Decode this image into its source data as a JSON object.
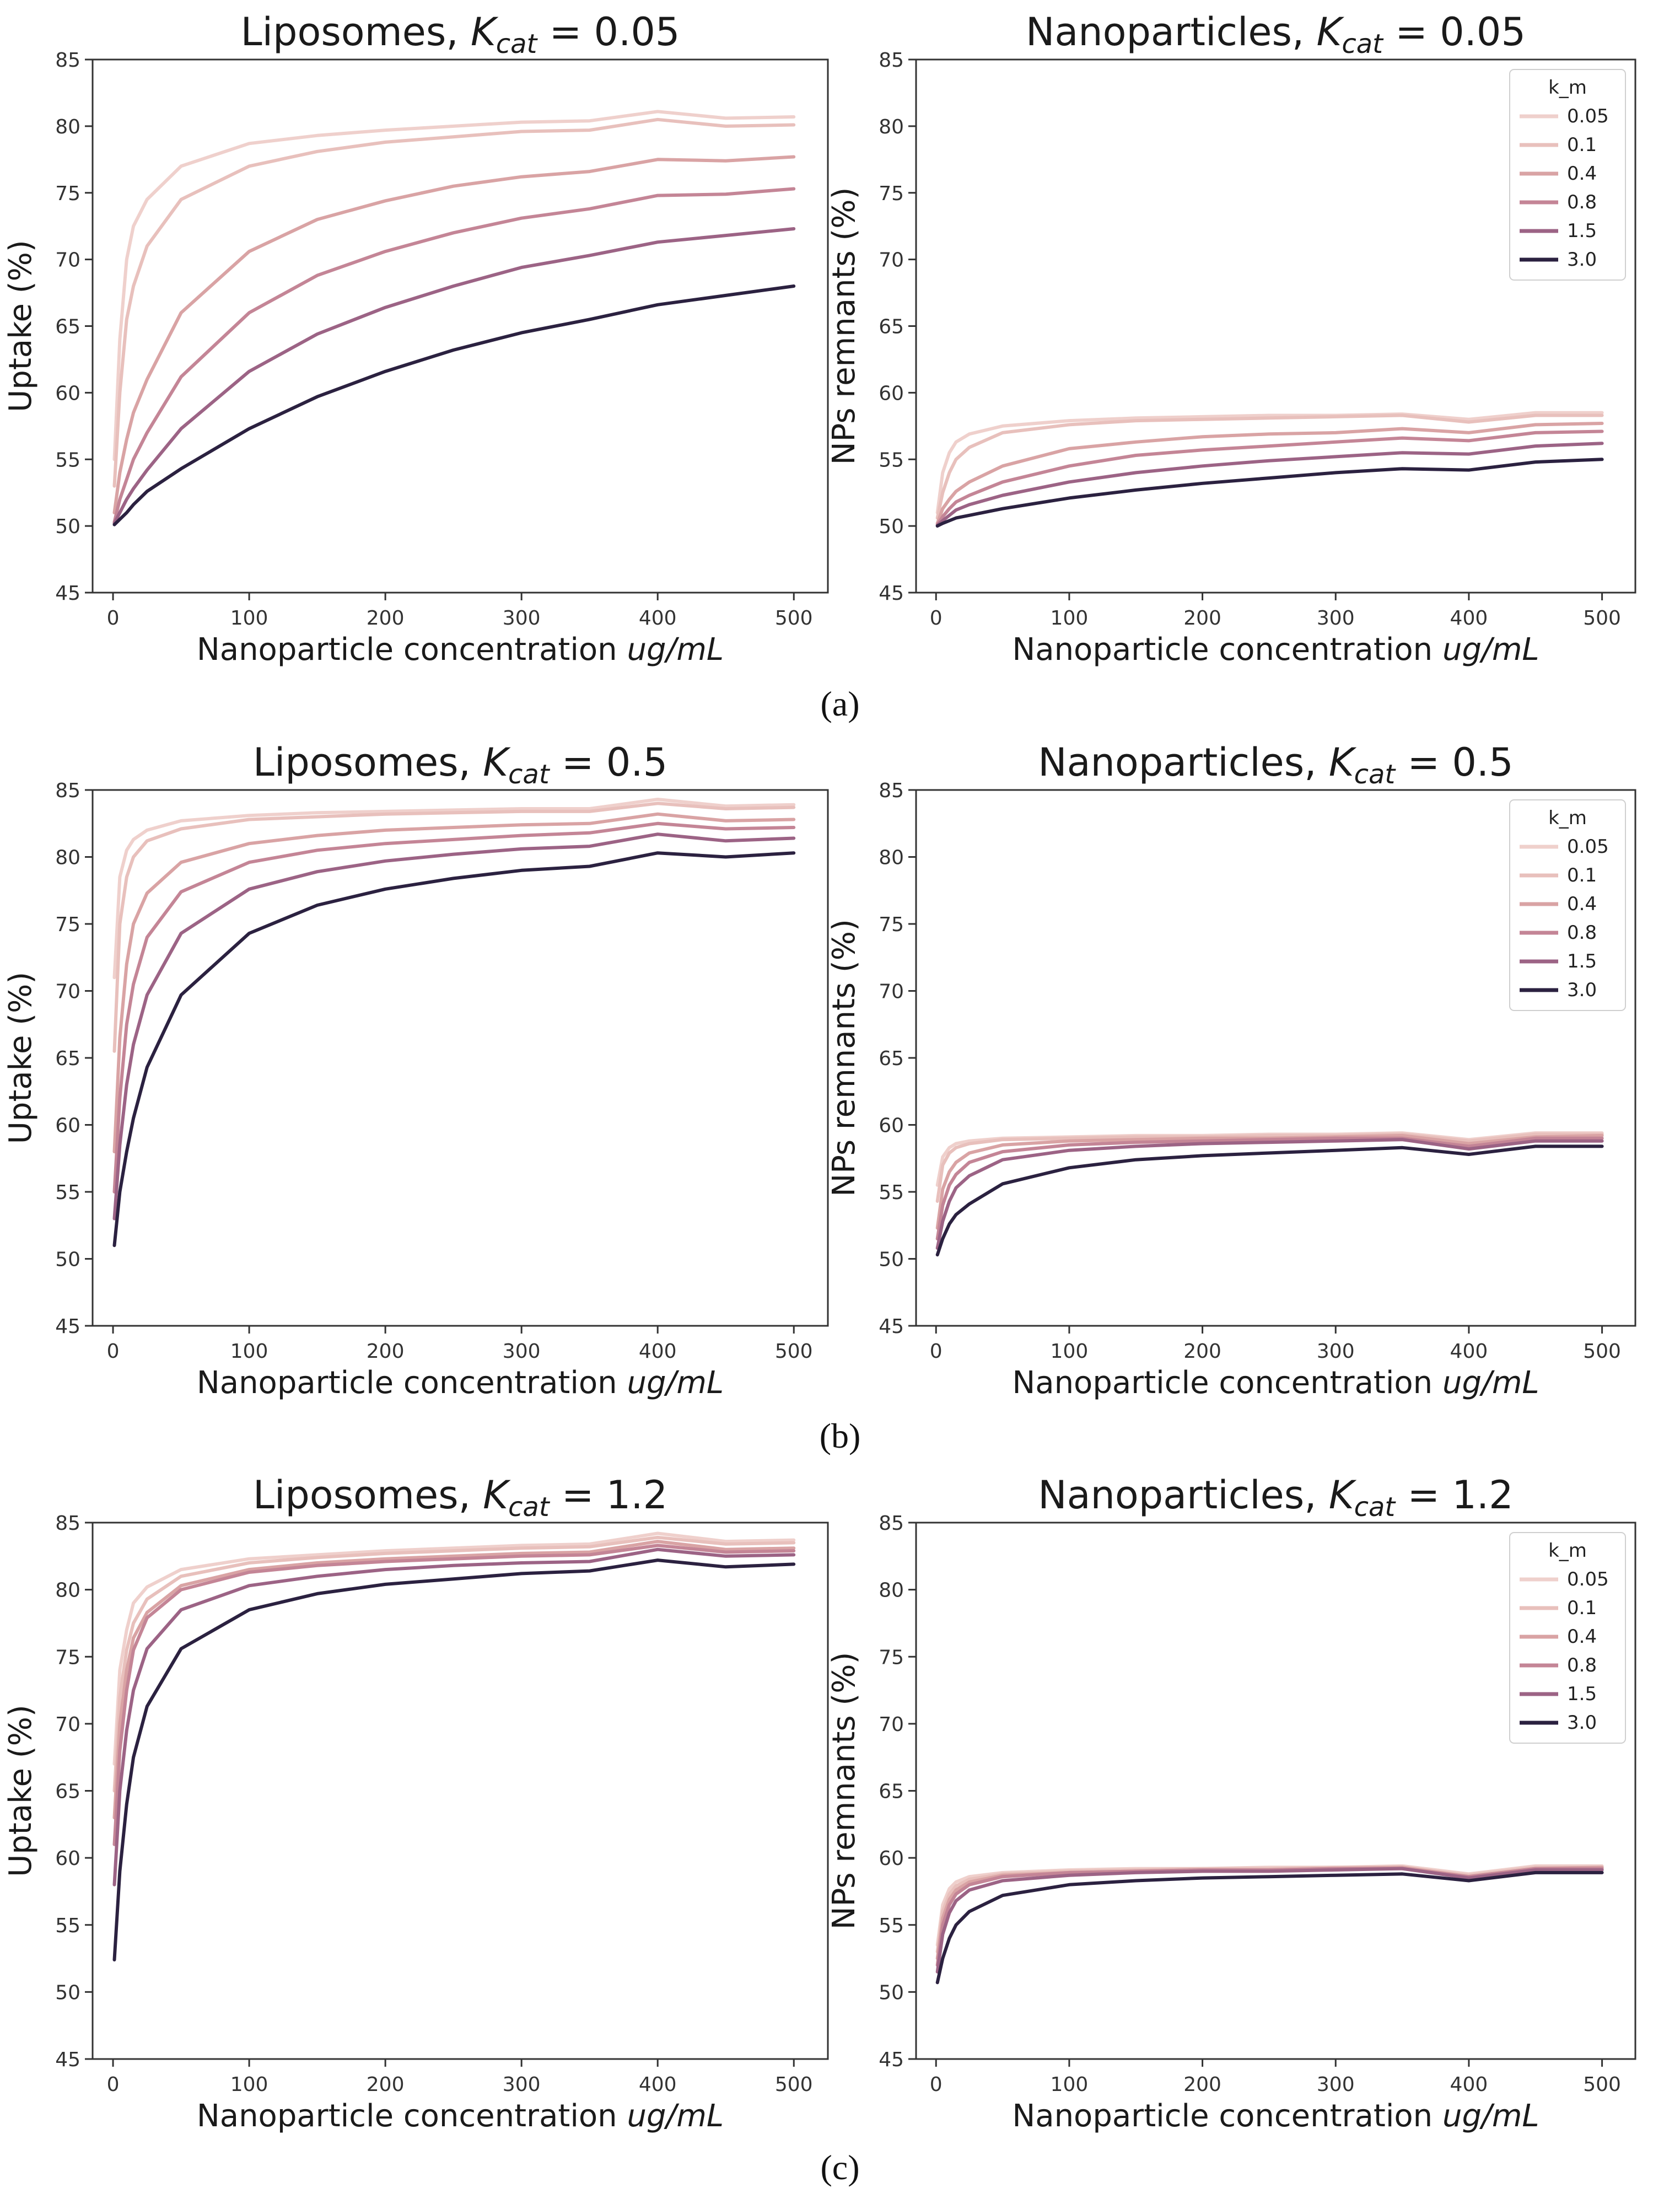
{
  "figure": {
    "captions": [
      "(a)",
      "(b)",
      "(c)"
    ],
    "x_unit_italic": "ug/mL"
  },
  "legend": {
    "title": "k_m",
    "entries": [
      "0.05",
      "0.1",
      "0.4",
      "0.8",
      "1.5",
      "3.0"
    ]
  },
  "series_colors": [
    "#efd0cc",
    "#e8c0bc",
    "#d9a3a4",
    "#c48596",
    "#9c6385",
    "#2b2140"
  ],
  "chart_data": [
    {
      "type": "line",
      "panel": "(a)",
      "title_main": "Liposomes, ",
      "title_symbol": "K",
      "title_sub": "cat",
      "title_value": "= 0.05",
      "xlabel": "Nanoparticle concentration ",
      "ylabel": "Uptake (%)",
      "xlim": [
        -15,
        525
      ],
      "ylim": [
        45,
        85
      ],
      "xticks": [
        0,
        100,
        200,
        300,
        400,
        500
      ],
      "yticks": [
        45,
        50,
        55,
        60,
        65,
        70,
        75,
        80,
        85
      ],
      "x": [
        1,
        5,
        10,
        15,
        25,
        50,
        100,
        150,
        200,
        250,
        300,
        350,
        400,
        450,
        500
      ],
      "legend": false,
      "series": [
        {
          "name": "0.05",
          "values": [
            55.0,
            64.0,
            70.0,
            72.5,
            74.5,
            77.0,
            78.7,
            79.3,
            79.7,
            80.0,
            80.3,
            80.4,
            81.1,
            80.6,
            80.7
          ]
        },
        {
          "name": "0.1",
          "values": [
            53.0,
            60.0,
            65.5,
            68.0,
            71.0,
            74.5,
            77.0,
            78.1,
            78.8,
            79.2,
            79.6,
            79.7,
            80.5,
            80.0,
            80.1
          ]
        },
        {
          "name": "0.4",
          "values": [
            51.0,
            54.0,
            56.5,
            58.5,
            61.0,
            66.0,
            70.6,
            73.0,
            74.4,
            75.5,
            76.2,
            76.6,
            77.5,
            77.4,
            77.7
          ]
        },
        {
          "name": "0.8",
          "values": [
            50.3,
            52.0,
            53.5,
            55.0,
            57.0,
            61.2,
            66.0,
            68.8,
            70.6,
            72.0,
            73.1,
            73.8,
            74.8,
            74.9,
            75.3
          ]
        },
        {
          "name": "1.5",
          "values": [
            50.2,
            51.0,
            52.0,
            52.8,
            54.2,
            57.3,
            61.6,
            64.4,
            66.4,
            68.0,
            69.4,
            70.3,
            71.3,
            71.8,
            72.3
          ]
        },
        {
          "name": "3.0",
          "values": [
            50.1,
            50.5,
            51.0,
            51.6,
            52.6,
            54.3,
            57.3,
            59.7,
            61.6,
            63.2,
            64.5,
            65.5,
            66.6,
            67.3,
            68.0
          ]
        }
      ]
    },
    {
      "type": "line",
      "panel": "(a)",
      "title_main": "Nanoparticles, ",
      "title_symbol": "K",
      "title_sub": "cat",
      "title_value": "= 0.05",
      "xlabel": "Nanoparticle concentration ",
      "ylabel": "NPs remnants (%)",
      "xlim": [
        -15,
        525
      ],
      "ylim": [
        45,
        85
      ],
      "xticks": [
        0,
        100,
        200,
        300,
        400,
        500
      ],
      "yticks": [
        45,
        50,
        55,
        60,
        65,
        70,
        75,
        80,
        85
      ],
      "x": [
        1,
        5,
        10,
        15,
        25,
        50,
        100,
        150,
        200,
        250,
        300,
        350,
        400,
        450,
        500
      ],
      "legend": true,
      "series": [
        {
          "name": "0.05",
          "values": [
            51.0,
            54.0,
            55.5,
            56.3,
            56.9,
            57.5,
            57.9,
            58.1,
            58.2,
            58.3,
            58.3,
            58.4,
            58.0,
            58.5,
            58.5
          ]
        },
        {
          "name": "0.1",
          "values": [
            50.6,
            52.5,
            54.0,
            55.0,
            55.9,
            57.0,
            57.6,
            57.9,
            58.0,
            58.1,
            58.2,
            58.3,
            57.8,
            58.3,
            58.3
          ]
        },
        {
          "name": "0.4",
          "values": [
            50.2,
            51.3,
            52.0,
            52.6,
            53.3,
            54.5,
            55.8,
            56.3,
            56.7,
            56.9,
            57.0,
            57.3,
            57.0,
            57.6,
            57.7
          ]
        },
        {
          "name": "0.8",
          "values": [
            50.1,
            50.7,
            51.3,
            51.8,
            52.3,
            53.3,
            54.5,
            55.3,
            55.7,
            56.0,
            56.3,
            56.6,
            56.4,
            57.0,
            57.1
          ]
        },
        {
          "name": "1.5",
          "values": [
            50.05,
            50.4,
            50.8,
            51.2,
            51.6,
            52.3,
            53.3,
            54.0,
            54.5,
            54.9,
            55.2,
            55.5,
            55.4,
            56.0,
            56.2
          ]
        },
        {
          "name": "3.0",
          "values": [
            50.0,
            50.2,
            50.4,
            50.6,
            50.8,
            51.3,
            52.1,
            52.7,
            53.2,
            53.6,
            54.0,
            54.3,
            54.2,
            54.8,
            55.0
          ]
        }
      ]
    },
    {
      "type": "line",
      "panel": "(b)",
      "title_main": "Liposomes, ",
      "title_symbol": "K",
      "title_sub": "cat",
      "title_value": "= 0.5",
      "xlabel": "Nanoparticle concentration ",
      "ylabel": "Uptake (%)",
      "xlim": [
        -15,
        525
      ],
      "ylim": [
        45,
        85
      ],
      "xticks": [
        0,
        100,
        200,
        300,
        400,
        500
      ],
      "yticks": [
        45,
        50,
        55,
        60,
        65,
        70,
        75,
        80,
        85
      ],
      "x": [
        1,
        5,
        10,
        15,
        25,
        50,
        100,
        150,
        200,
        250,
        300,
        350,
        400,
        450,
        500
      ],
      "legend": false,
      "series": [
        {
          "name": "0.05",
          "values": [
            71.0,
            78.5,
            80.5,
            81.3,
            82.0,
            82.7,
            83.1,
            83.3,
            83.4,
            83.5,
            83.6,
            83.6,
            84.3,
            83.8,
            83.9
          ]
        },
        {
          "name": "0.1",
          "values": [
            65.5,
            75.0,
            78.5,
            80.0,
            81.2,
            82.1,
            82.8,
            83.0,
            83.2,
            83.3,
            83.4,
            83.4,
            84.0,
            83.6,
            83.7
          ]
        },
        {
          "name": "0.4",
          "values": [
            58.0,
            66.5,
            72.0,
            75.0,
            77.3,
            79.6,
            81.0,
            81.6,
            82.0,
            82.2,
            82.4,
            82.5,
            83.2,
            82.7,
            82.8
          ]
        },
        {
          "name": "0.8",
          "values": [
            55.0,
            62.0,
            67.5,
            70.5,
            74.0,
            77.4,
            79.6,
            80.5,
            81.0,
            81.3,
            81.6,
            81.8,
            82.5,
            82.1,
            82.2
          ]
        },
        {
          "name": "1.5",
          "values": [
            53.0,
            58.5,
            63.0,
            66.0,
            69.7,
            74.3,
            77.6,
            78.9,
            79.7,
            80.2,
            80.6,
            80.8,
            81.7,
            81.2,
            81.4
          ]
        },
        {
          "name": "3.0",
          "values": [
            51.0,
            55.0,
            58.0,
            60.5,
            64.3,
            69.7,
            74.3,
            76.4,
            77.6,
            78.4,
            79.0,
            79.3,
            80.3,
            80.0,
            80.3
          ]
        }
      ]
    },
    {
      "type": "line",
      "panel": "(b)",
      "title_main": "Nanoparticles, ",
      "title_symbol": "K",
      "title_sub": "cat",
      "title_value": "= 0.5",
      "xlabel": "Nanoparticle concentration ",
      "ylabel": "NPs remnants (%)",
      "xlim": [
        -15,
        525
      ],
      "ylim": [
        45,
        85
      ],
      "xticks": [
        0,
        100,
        200,
        300,
        400,
        500
      ],
      "yticks": [
        45,
        50,
        55,
        60,
        65,
        70,
        75,
        80,
        85
      ],
      "x": [
        1,
        5,
        10,
        15,
        25,
        50,
        100,
        150,
        200,
        250,
        300,
        350,
        400,
        450,
        500
      ],
      "legend": true,
      "series": [
        {
          "name": "0.05",
          "values": [
            55.5,
            57.6,
            58.3,
            58.6,
            58.8,
            59.0,
            59.1,
            59.2,
            59.2,
            59.3,
            59.3,
            59.4,
            58.9,
            59.4,
            59.4
          ]
        },
        {
          "name": "0.1",
          "values": [
            54.3,
            57.0,
            57.9,
            58.3,
            58.6,
            58.9,
            59.0,
            59.1,
            59.1,
            59.2,
            59.2,
            59.3,
            58.8,
            59.3,
            59.3
          ]
        },
        {
          "name": "0.4",
          "values": [
            52.3,
            55.2,
            56.5,
            57.2,
            57.9,
            58.5,
            58.8,
            58.9,
            59.0,
            59.0,
            59.1,
            59.2,
            58.6,
            59.1,
            59.2
          ]
        },
        {
          "name": "0.8",
          "values": [
            51.5,
            54.0,
            55.5,
            56.3,
            57.2,
            58.0,
            58.5,
            58.7,
            58.8,
            58.9,
            59.0,
            59.0,
            58.4,
            59.0,
            59.0
          ]
        },
        {
          "name": "1.5",
          "values": [
            50.8,
            52.8,
            54.3,
            55.3,
            56.2,
            57.4,
            58.1,
            58.4,
            58.6,
            58.7,
            58.8,
            58.9,
            58.2,
            58.8,
            58.8
          ]
        },
        {
          "name": "3.0",
          "values": [
            50.3,
            51.5,
            52.6,
            53.3,
            54.1,
            55.6,
            56.8,
            57.4,
            57.7,
            57.9,
            58.1,
            58.3,
            57.8,
            58.4,
            58.4
          ]
        }
      ]
    },
    {
      "type": "line",
      "panel": "(c)",
      "title_main": "Liposomes, ",
      "title_symbol": "K",
      "title_sub": "cat",
      "title_value": "= 1.2",
      "xlabel": "Nanoparticle concentration ",
      "ylabel": "Uptake (%)",
      "xlim": [
        -15,
        525
      ],
      "ylim": [
        45,
        85
      ],
      "xticks": [
        0,
        100,
        200,
        300,
        400,
        500
      ],
      "yticks": [
        45,
        50,
        55,
        60,
        65,
        70,
        75,
        80,
        85
      ],
      "x": [
        1,
        5,
        10,
        15,
        25,
        50,
        100,
        150,
        200,
        250,
        300,
        350,
        400,
        450,
        500
      ],
      "legend": false,
      "series": [
        {
          "name": "0.05",
          "values": [
            67.0,
            74.0,
            77.0,
            79.0,
            80.2,
            81.5,
            82.3,
            82.6,
            82.9,
            83.1,
            83.3,
            83.4,
            84.2,
            83.6,
            83.7
          ]
        },
        {
          "name": "0.1",
          "values": [
            65.0,
            72.0,
            75.5,
            77.5,
            79.3,
            81.0,
            82.0,
            82.4,
            82.7,
            82.9,
            83.1,
            83.2,
            83.9,
            83.4,
            83.5
          ]
        },
        {
          "name": "0.4",
          "values": [
            63.0,
            70.0,
            74.0,
            76.4,
            78.3,
            80.3,
            81.5,
            82.0,
            82.3,
            82.5,
            82.7,
            82.8,
            83.6,
            83.0,
            83.1
          ]
        },
        {
          "name": "0.8",
          "values": [
            61.0,
            68.0,
            72.5,
            75.5,
            77.9,
            80.0,
            81.3,
            81.8,
            82.1,
            82.3,
            82.5,
            82.6,
            83.3,
            82.8,
            82.9
          ]
        },
        {
          "name": "1.5",
          "values": [
            58.0,
            65.0,
            69.5,
            72.5,
            75.6,
            78.5,
            80.3,
            81.0,
            81.5,
            81.8,
            82.0,
            82.1,
            83.0,
            82.5,
            82.6
          ]
        },
        {
          "name": "3.0",
          "values": [
            52.4,
            59.0,
            64.0,
            67.5,
            71.3,
            75.6,
            78.5,
            79.7,
            80.4,
            80.8,
            81.2,
            81.4,
            82.2,
            81.7,
            81.9
          ]
        }
      ]
    },
    {
      "type": "line",
      "panel": "(c)",
      "title_main": "Nanoparticles, ",
      "title_symbol": "K",
      "title_sub": "cat",
      "title_value": "= 1.2",
      "xlabel": "Nanoparticle concentration ",
      "ylabel": "NPs remnants (%)",
      "xlim": [
        -15,
        525
      ],
      "ylim": [
        45,
        85
      ],
      "xticks": [
        0,
        100,
        200,
        300,
        400,
        500
      ],
      "yticks": [
        45,
        50,
        55,
        60,
        65,
        70,
        75,
        80,
        85
      ],
      "x": [
        1,
        5,
        10,
        15,
        25,
        50,
        100,
        150,
        200,
        250,
        300,
        350,
        400,
        450,
        500
      ],
      "legend": true,
      "series": [
        {
          "name": "0.05",
          "values": [
            53.5,
            56.5,
            57.7,
            58.2,
            58.6,
            58.9,
            59.1,
            59.2,
            59.2,
            59.3,
            59.3,
            59.4,
            58.8,
            59.4,
            59.4
          ]
        },
        {
          "name": "0.1",
          "values": [
            53.0,
            56.0,
            57.3,
            57.9,
            58.4,
            58.8,
            59.0,
            59.1,
            59.2,
            59.2,
            59.3,
            59.3,
            58.7,
            59.3,
            59.3
          ]
        },
        {
          "name": "0.4",
          "values": [
            52.5,
            55.5,
            56.9,
            57.6,
            58.2,
            58.7,
            58.9,
            59.0,
            59.1,
            59.1,
            59.2,
            59.3,
            58.6,
            59.2,
            59.3
          ]
        },
        {
          "name": "0.8",
          "values": [
            52.0,
            55.0,
            56.5,
            57.3,
            58.0,
            58.6,
            58.9,
            59.0,
            59.1,
            59.1,
            59.2,
            59.2,
            58.6,
            59.2,
            59.2
          ]
        },
        {
          "name": "1.5",
          "values": [
            51.5,
            54.3,
            55.9,
            56.8,
            57.6,
            58.3,
            58.7,
            58.9,
            59.0,
            59.0,
            59.1,
            59.2,
            58.5,
            59.1,
            59.1
          ]
        },
        {
          "name": "3.0",
          "values": [
            50.7,
            52.5,
            54.0,
            55.0,
            56.0,
            57.2,
            58.0,
            58.3,
            58.5,
            58.6,
            58.7,
            58.8,
            58.3,
            58.9,
            58.9
          ]
        }
      ]
    }
  ]
}
